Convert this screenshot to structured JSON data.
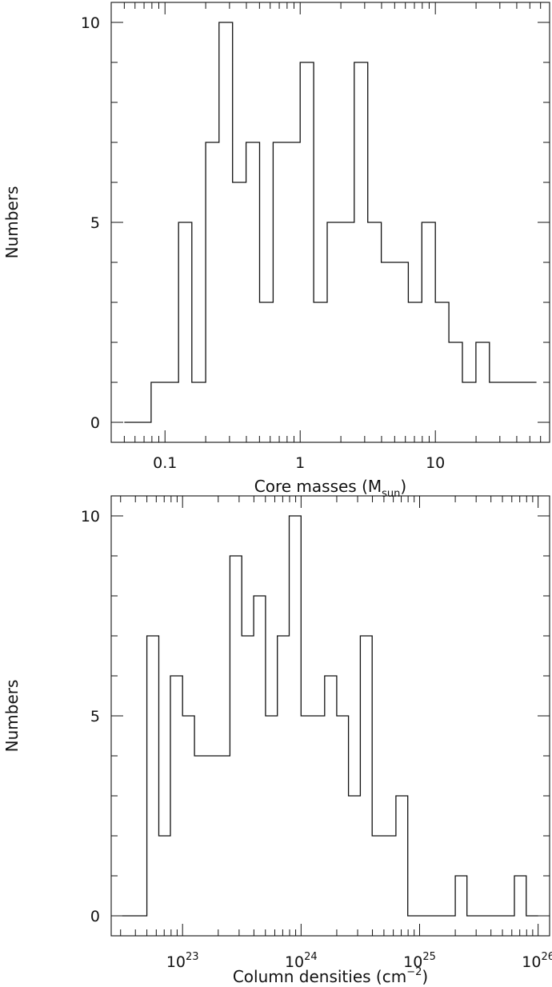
{
  "chart_data": [
    {
      "type": "histogram",
      "xscale": "log",
      "xlim": [
        0.04,
        70
      ],
      "ylim": [
        -0.5,
        10.5
      ],
      "ylabel": "Numbers",
      "xlabel": {
        "text": "Core masses (M",
        "sub": "sun",
        "suffix": ")"
      },
      "xticks": [
        {
          "value": 0.1,
          "label": "0.1"
        },
        {
          "value": 1,
          "label": "1"
        },
        {
          "value": 10,
          "label": "10"
        }
      ],
      "yticks": [
        {
          "value": 0,
          "label": "0"
        },
        {
          "value": 5,
          "label": "5"
        },
        {
          "value": 10,
          "label": "10"
        }
      ],
      "series": [
        {
          "bin_edges": [
            0.05,
            0.079,
            0.126,
            0.158,
            0.2,
            0.251,
            0.316,
            0.398,
            0.501,
            0.631,
            1.0,
            1.259,
            1.585,
            2.512,
            3.162,
            3.981,
            6.31,
            7.943,
            10.0,
            12.589,
            15.849,
            19.953,
            25.119,
            56.0
          ],
          "counts": [
            0,
            1,
            5,
            1,
            7,
            10,
            6,
            7,
            3,
            7,
            9,
            3,
            5,
            9,
            5,
            4,
            3,
            5,
            3,
            2,
            1,
            2,
            1
          ]
        }
      ]
    },
    {
      "type": "histogram",
      "xscale": "log",
      "xlim": [
        2.5e+22,
        1.25e+26
      ],
      "ylim": [
        -0.5,
        10.5
      ],
      "ylabel": "Numbers",
      "xlabel": {
        "text": "Column densities (cm",
        "sup": "−2",
        "suffix": ")"
      },
      "xticks": [
        {
          "value": 1e+23,
          "base": "10",
          "exp": "23"
        },
        {
          "value": 1e+24,
          "base": "10",
          "exp": "24"
        },
        {
          "value": 1e+25,
          "base": "10",
          "exp": "25"
        },
        {
          "value": 1e+26,
          "base": "10",
          "exp": "26"
        }
      ],
      "yticks": [
        {
          "value": 0,
          "label": "0"
        },
        {
          "value": 5,
          "label": "5"
        },
        {
          "value": 10,
          "label": "10"
        }
      ],
      "series": [
        {
          "bin_edges": [
            3.1e+22,
            5e+22,
            6.3e+22,
            7.9e+22,
            1e+23,
            1.26e+23,
            2.51e+23,
            3.16e+23,
            3.98e+23,
            5.01e+23,
            6.31e+23,
            7.94e+23,
            1e+24,
            1.58e+24,
            2e+24,
            2.51e+24,
            3.16e+24,
            3.98e+24,
            6.31e+24,
            7.94e+24,
            2e+25,
            2.51e+25,
            6.31e+25,
            7.94e+25,
            1e+26
          ],
          "counts": [
            0,
            7,
            2,
            6,
            5,
            4,
            9,
            7,
            8,
            5,
            7,
            10,
            5,
            6,
            5,
            3,
            7,
            2,
            3,
            0,
            1,
            0,
            1,
            0
          ]
        }
      ]
    }
  ]
}
